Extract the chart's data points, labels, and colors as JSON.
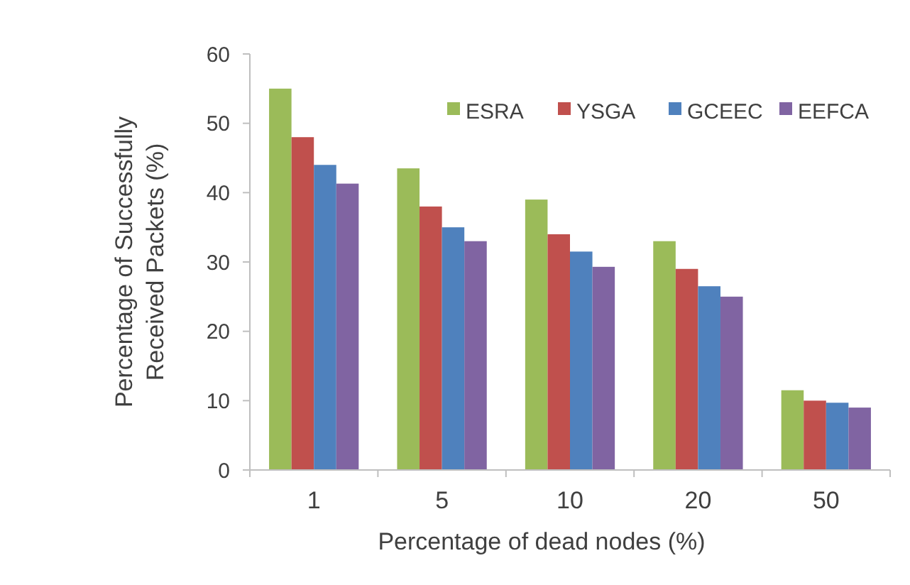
{
  "chart_data": {
    "type": "bar",
    "xlabel": "Percentage of dead nodes (%)",
    "ylabel": "Percentage of Successfully Received Packets (%)",
    "categories": [
      "1",
      "5",
      "10",
      "20",
      "50"
    ],
    "series": [
      {
        "name": "ESRA",
        "color": "#9bbb59",
        "values": [
          55,
          43.5,
          39,
          33,
          11.5
        ]
      },
      {
        "name": "YSGA",
        "color": "#c0504d",
        "values": [
          48,
          38,
          34,
          29,
          10
        ]
      },
      {
        "name": "GCEEC",
        "color": "#4f81bd",
        "values": [
          44,
          35,
          31.5,
          26.5,
          9.7
        ]
      },
      {
        "name": "EEFCA",
        "color": "#8064a2",
        "values": [
          41.3,
          33,
          29.3,
          25,
          9
        ]
      }
    ],
    "ylim": [
      0,
      60
    ],
    "yticks": [
      0,
      10,
      20,
      30,
      40,
      50,
      60
    ],
    "legend": "top right"
  }
}
